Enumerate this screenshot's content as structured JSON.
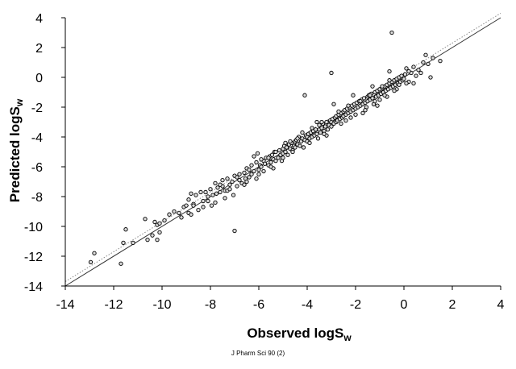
{
  "chart_data": {
    "type": "scatter",
    "title": "",
    "xlabel": {
      "main": "Observed logS",
      "sub": "w"
    },
    "ylabel": {
      "main": "Predicted logS",
      "sub": "w"
    },
    "xlim": [
      -14,
      4
    ],
    "ylim": [
      -14,
      4
    ],
    "xticks": [
      -14,
      -12,
      -10,
      -8,
      -6,
      -4,
      -2,
      0,
      2,
      4
    ],
    "yticks": [
      -14,
      -12,
      -10,
      -8,
      -6,
      -4,
      -2,
      0,
      2,
      4
    ],
    "grid": false,
    "reference_lines": [
      {
        "style": "solid",
        "x": [
          -14,
          4
        ],
        "y": [
          -14,
          4
        ]
      },
      {
        "style": "dotted",
        "x": [
          -14,
          4
        ],
        "y": [
          -13.7,
          4.3
        ]
      }
    ],
    "points": [
      [
        -12.95,
        -12.4
      ],
      [
        -12.8,
        -11.8
      ],
      [
        -11.7,
        -12.5
      ],
      [
        -11.6,
        -11.1
      ],
      [
        -11.5,
        -10.2
      ],
      [
        -11.2,
        -11.1
      ],
      [
        -10.7,
        -9.5
      ],
      [
        -10.6,
        -10.9
      ],
      [
        -10.4,
        -10.6
      ],
      [
        -10.3,
        -9.7
      ],
      [
        -10.2,
        -10.9
      ],
      [
        -10.2,
        -9.9
      ],
      [
        -10.1,
        -10.4
      ],
      [
        -10.1,
        -9.8
      ],
      [
        -9.9,
        -9.6
      ],
      [
        -9.7,
        -9.2
      ],
      [
        -9.5,
        -9.0
      ],
      [
        -9.3,
        -9.1
      ],
      [
        -9.1,
        -8.7
      ],
      [
        -9.0,
        -8.6
      ],
      [
        -8.9,
        -8.2
      ],
      [
        -8.9,
        -9.1
      ],
      [
        -8.8,
        -7.8
      ],
      [
        -8.7,
        -8.5
      ],
      [
        -8.6,
        -7.9
      ],
      [
        -8.5,
        -8.9
      ],
      [
        -8.4,
        -7.7
      ],
      [
        -8.3,
        -8.3
      ],
      [
        -8.2,
        -7.7
      ],
      [
        -8.1,
        -8.0
      ],
      [
        -8.0,
        -7.5
      ],
      [
        -7.95,
        -8.6
      ],
      [
        -7.9,
        -7.9
      ],
      [
        -7.8,
        -7.1
      ],
      [
        -7.75,
        -7.8
      ],
      [
        -7.7,
        -7.4
      ],
      [
        -7.6,
        -7.7
      ],
      [
        -7.5,
        -7.3
      ],
      [
        -7.5,
        -6.9
      ],
      [
        -7.4,
        -8.1
      ],
      [
        -7.4,
        -7.6
      ],
      [
        -7.3,
        -6.8
      ],
      [
        -7.2,
        -7.2
      ],
      [
        -7.1,
        -7.0
      ],
      [
        -7.05,
        -7.9
      ],
      [
        -7.0,
        -6.6
      ],
      [
        -7.0,
        -10.3
      ],
      [
        -6.9,
        -7.3
      ],
      [
        -6.8,
        -6.9
      ],
      [
        -6.8,
        -6.5
      ],
      [
        -6.7,
        -7.1
      ],
      [
        -6.6,
        -6.4
      ],
      [
        -6.55,
        -6.8
      ],
      [
        -6.5,
        -6.1
      ],
      [
        -6.5,
        -7.0
      ],
      [
        -6.4,
        -6.7
      ],
      [
        -6.3,
        -5.9
      ],
      [
        -6.3,
        -6.5
      ],
      [
        -6.2,
        -6.3
      ],
      [
        -6.1,
        -5.7
      ],
      [
        -6.1,
        -6.8
      ],
      [
        -6.05,
        -5.1
      ],
      [
        -6.0,
        -6.2
      ],
      [
        -5.95,
        -5.9
      ],
      [
        -5.9,
        -6.0
      ],
      [
        -5.8,
        -5.6
      ],
      [
        -5.8,
        -6.3
      ],
      [
        -5.75,
        -5.8
      ],
      [
        -5.7,
        -5.4
      ],
      [
        -5.6,
        -5.9
      ],
      [
        -5.55,
        -5.3
      ],
      [
        -5.5,
        -5.7
      ],
      [
        -5.45,
        -5.2
      ],
      [
        -5.4,
        -5.5
      ],
      [
        -5.35,
        -5.0
      ],
      [
        -5.3,
        -5.6
      ],
      [
        -5.2,
        -5.4
      ],
      [
        -5.15,
        -4.9
      ],
      [
        -5.1,
        -5.2
      ],
      [
        -5.05,
        -5.6
      ],
      [
        -5.0,
        -4.8
      ],
      [
        -5.0,
        -5.1
      ],
      [
        -4.95,
        -4.6
      ],
      [
        -4.9,
        -5.0
      ],
      [
        -4.85,
        -4.7
      ],
      [
        -4.8,
        -5.2
      ],
      [
        -4.75,
        -4.5
      ],
      [
        -4.7,
        -4.8
      ],
      [
        -4.65,
        -4.4
      ],
      [
        -4.6,
        -4.9
      ],
      [
        -4.55,
        -4.6
      ],
      [
        -4.5,
        -4.3
      ],
      [
        -4.5,
        -4.7
      ],
      [
        -4.45,
        -4.2
      ],
      [
        -4.4,
        -4.5
      ],
      [
        -4.35,
        -4.0
      ],
      [
        -4.3,
        -4.6
      ],
      [
        -4.25,
        -4.3
      ],
      [
        -4.2,
        -4.1
      ],
      [
        -4.15,
        -4.7
      ],
      [
        -4.1,
        -4.2
      ],
      [
        -4.05,
        -3.9
      ],
      [
        -4.0,
        -4.3
      ],
      [
        -4.0,
        -4.0
      ],
      [
        -3.95,
        -3.8
      ],
      [
        -3.9,
        -4.1
      ],
      [
        -3.85,
        -3.7
      ],
      [
        -3.8,
        -4.0
      ],
      [
        -3.75,
        -3.6
      ],
      [
        -3.7,
        -3.9
      ],
      [
        -3.65,
        -3.5
      ],
      [
        -3.6,
        -3.8
      ],
      [
        -3.55,
        -4.1
      ],
      [
        -3.5,
        -3.5
      ],
      [
        -3.5,
        -3.2
      ],
      [
        -3.45,
        -3.7
      ],
      [
        -3.4,
        -3.4
      ],
      [
        -3.35,
        -3.1
      ],
      [
        -3.3,
        -3.6
      ],
      [
        -3.25,
        -3.3
      ],
      [
        -3.2,
        -3.0
      ],
      [
        -3.15,
        -3.5
      ],
      [
        -3.1,
        -3.2
      ],
      [
        -3.05,
        -2.9
      ],
      [
        -3.0,
        -3.3
      ],
      [
        -3.0,
        -3.0
      ],
      [
        -3.0,
        0.3
      ],
      [
        -2.95,
        -2.8
      ],
      [
        -2.9,
        -3.1
      ],
      [
        -2.85,
        -2.7
      ],
      [
        -2.8,
        -3.0
      ],
      [
        -2.8,
        -2.6
      ],
      [
        -2.75,
        -2.9
      ],
      [
        -2.7,
        -2.5
      ],
      [
        -2.65,
        -2.8
      ],
      [
        -2.6,
        -2.4
      ],
      [
        -2.55,
        -2.7
      ],
      [
        -2.5,
        -2.3
      ],
      [
        -2.5,
        -2.6
      ],
      [
        -2.45,
        -2.2
      ],
      [
        -2.4,
        -2.5
      ],
      [
        -2.35,
        -2.1
      ],
      [
        -2.3,
        -2.4
      ],
      [
        -2.25,
        -2.0
      ],
      [
        -2.2,
        -2.3
      ],
      [
        -2.15,
        -1.9
      ],
      [
        -2.1,
        -2.2
      ],
      [
        -2.05,
        -1.8
      ],
      [
        -2.0,
        -2.1
      ],
      [
        -2.0,
        -2.5
      ],
      [
        -1.95,
        -1.7
      ],
      [
        -1.9,
        -2.0
      ],
      [
        -1.85,
        -1.6
      ],
      [
        -1.8,
        -1.9
      ],
      [
        -1.75,
        -1.5
      ],
      [
        -1.7,
        -1.8
      ],
      [
        -1.65,
        -1.4
      ],
      [
        -1.6,
        -1.7
      ],
      [
        -1.55,
        -2.0
      ],
      [
        -1.5,
        -1.3
      ],
      [
        -1.5,
        -1.6
      ],
      [
        -1.45,
        -1.2
      ],
      [
        -1.4,
        -1.5
      ],
      [
        -1.35,
        -1.1
      ],
      [
        -1.3,
        -1.4
      ],
      [
        -1.25,
        -1.8
      ],
      [
        -1.2,
        -1.0
      ],
      [
        -1.15,
        -1.3
      ],
      [
        -1.1,
        -0.9
      ],
      [
        -1.05,
        -1.2
      ],
      [
        -1.0,
        -0.8
      ],
      [
        -1.0,
        -1.5
      ],
      [
        -0.95,
        -1.1
      ],
      [
        -0.9,
        -0.7
      ],
      [
        -0.85,
        -1.0
      ],
      [
        -0.8,
        -0.6
      ],
      [
        -0.75,
        -0.9
      ],
      [
        -0.7,
        -0.5
      ],
      [
        -0.65,
        -0.8
      ],
      [
        -0.6,
        -0.4
      ],
      [
        -0.55,
        -0.7
      ],
      [
        -0.5,
        -0.3
      ],
      [
        -0.5,
        3.0
      ],
      [
        -0.45,
        -0.6
      ],
      [
        -0.4,
        -0.2
      ],
      [
        -0.35,
        -0.5
      ],
      [
        -0.3,
        -0.1
      ],
      [
        -0.25,
        -0.4
      ],
      [
        -0.2,
        0.0
      ],
      [
        -0.15,
        -0.3
      ],
      [
        -0.1,
        0.1
      ],
      [
        -0.05,
        -0.2
      ],
      [
        0.0,
        -0.1
      ],
      [
        0.05,
        0.2
      ],
      [
        0.1,
        0.6
      ],
      [
        0.2,
        -0.3
      ],
      [
        0.3,
        0.3
      ],
      [
        0.4,
        0.7
      ],
      [
        0.5,
        0.1
      ],
      [
        0.6,
        0.5
      ],
      [
        0.8,
        1.0
      ],
      [
        0.9,
        1.5
      ],
      [
        1.0,
        0.9
      ],
      [
        1.1,
        0.0
      ],
      [
        1.2,
        1.3
      ],
      [
        1.5,
        1.1
      ],
      [
        -7.3,
        -7.6
      ],
      [
        -6.2,
        -5.3
      ],
      [
        -5.4,
        -6.1
      ],
      [
        -4.7,
        -4.3
      ],
      [
        -4.1,
        -1.2
      ],
      [
        -3.6,
        -3.0
      ],
      [
        -3.2,
        -3.9
      ],
      [
        -2.9,
        -1.8
      ],
      [
        -2.4,
        -2.9
      ],
      [
        -2.1,
        -1.2
      ],
      [
        -1.7,
        -2.4
      ],
      [
        -1.3,
        -0.6
      ],
      [
        -1.1,
        -1.9
      ],
      [
        -0.7,
        -1.3
      ],
      [
        -0.6,
        0.4
      ],
      [
        -0.3,
        -0.8
      ],
      [
        0.2,
        0.4
      ],
      [
        0.4,
        -0.4
      ],
      [
        -8.7,
        -8.6
      ],
      [
        -8.1,
        -8.3
      ],
      [
        -7.6,
        -7.2
      ],
      [
        -6.9,
        -6.7
      ],
      [
        -6.4,
        -6.2
      ],
      [
        -5.9,
        -5.5
      ],
      [
        -5.6,
        -5.4
      ],
      [
        -5.3,
        -5.0
      ],
      [
        -4.9,
        -4.4
      ],
      [
        -4.4,
        -4.1
      ],
      [
        -4.2,
        -3.7
      ],
      [
        -3.8,
        -3.4
      ],
      [
        -3.4,
        -3.0
      ],
      [
        -2.7,
        -2.3
      ],
      [
        -2.3,
        -1.9
      ],
      [
        -1.8,
        -1.6
      ],
      [
        -1.4,
        -1.2
      ],
      [
        -0.9,
        -0.6
      ],
      [
        -0.6,
        -0.2
      ],
      [
        -0.2,
        -0.5
      ],
      [
        -9.2,
        -9.4
      ],
      [
        -8.8,
        -9.2
      ],
      [
        -8.3,
        -8.7
      ],
      [
        -7.8,
        -8.4
      ],
      [
        -7.2,
        -7.5
      ],
      [
        -6.6,
        -7.2
      ],
      [
        -6.0,
        -6.5
      ],
      [
        -5.5,
        -6.0
      ],
      [
        -5.0,
        -5.4
      ],
      [
        -4.6,
        -5.0
      ],
      [
        -3.9,
        -4.4
      ],
      [
        -3.3,
        -3.8
      ],
      [
        -2.6,
        -3.1
      ],
      [
        -2.2,
        -2.7
      ],
      [
        -1.6,
        -2.2
      ],
      [
        -1.2,
        -1.6
      ],
      [
        -0.8,
        -1.2
      ],
      [
        -0.4,
        -0.9
      ],
      [
        0.1,
        -0.4
      ],
      [
        0.7,
        0.3
      ]
    ]
  },
  "caption": "J Pharm Sci 90 (2)"
}
